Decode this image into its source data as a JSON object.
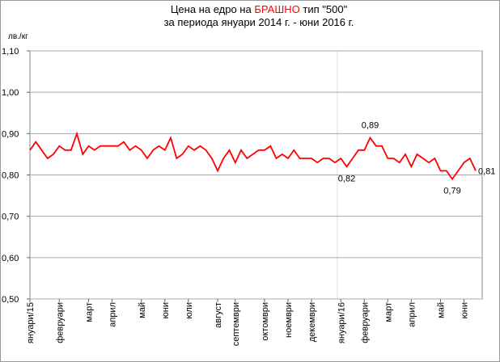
{
  "chart_data": {
    "type": "line",
    "title": [
      "Цена на едро на",
      "БРАШНО",
      "тип \"500\""
    ],
    "subtitle": "за периода януари 2014 г. - юни 2016 г.",
    "y_label": "лв./кг",
    "categories": [
      "януари/15",
      null,
      null,
      null,
      null,
      "февруари",
      null,
      null,
      null,
      null,
      "март",
      null,
      null,
      null,
      "април",
      null,
      null,
      null,
      null,
      "май",
      null,
      null,
      null,
      "юни",
      null,
      null,
      null,
      "юли",
      null,
      null,
      null,
      null,
      "август",
      null,
      null,
      "септември",
      null,
      null,
      null,
      null,
      "октомври",
      null,
      null,
      null,
      "ноември",
      null,
      null,
      null,
      "декември",
      null,
      null,
      null,
      null,
      "януари/16",
      null,
      null,
      null,
      "февруари",
      null,
      null,
      null,
      "март",
      null,
      null,
      null,
      "април",
      null,
      null,
      null,
      null,
      "май",
      null,
      null,
      null,
      "юни",
      null,
      null
    ],
    "series": [
      {
        "name": "БРАШНО",
        "color": "#ff0000",
        "values": [
          0.86,
          0.88,
          0.86,
          0.84,
          0.85,
          0.87,
          0.86,
          0.86,
          0.9,
          0.85,
          0.87,
          0.86,
          0.87,
          0.87,
          0.87,
          0.87,
          0.88,
          0.86,
          0.87,
          0.86,
          0.84,
          0.86,
          0.87,
          0.86,
          0.89,
          0.84,
          0.85,
          0.87,
          0.86,
          0.87,
          0.86,
          0.84,
          0.81,
          0.84,
          0.86,
          0.83,
          0.86,
          0.84,
          0.85,
          0.86,
          0.86,
          0.87,
          0.84,
          0.85,
          0.84,
          0.86,
          0.84,
          0.84,
          0.84,
          0.83,
          0.84,
          0.84,
          0.83,
          0.84,
          0.82,
          0.84,
          0.86,
          0.86,
          0.89,
          0.87,
          0.87,
          0.84,
          0.84,
          0.83,
          0.85,
          0.82,
          0.85,
          0.84,
          0.83,
          0.84,
          0.81,
          0.81,
          0.79,
          0.81,
          0.83,
          0.84,
          0.81
        ],
        "value_labels": [
          null,
          null,
          null,
          null,
          null,
          null,
          null,
          null,
          null,
          null,
          null,
          null,
          null,
          null,
          null,
          null,
          null,
          null,
          null,
          null,
          null,
          null,
          null,
          null,
          null,
          null,
          null,
          null,
          null,
          null,
          null,
          null,
          null,
          null,
          null,
          null,
          null,
          null,
          null,
          null,
          null,
          null,
          null,
          null,
          null,
          null,
          null,
          null,
          null,
          null,
          null,
          null,
          null,
          null,
          "0,82",
          null,
          null,
          null,
          "0,89",
          null,
          null,
          null,
          null,
          null,
          null,
          null,
          null,
          null,
          null,
          null,
          null,
          null,
          "0,79",
          null,
          null,
          null,
          "0,81"
        ]
      }
    ],
    "ylim": [
      0.5,
      1.1
    ],
    "yticks": [
      {
        "value": 0.5,
        "label": "0,50"
      },
      {
        "value": 0.6,
        "label": "0,60"
      },
      {
        "value": 0.7,
        "label": "0,70"
      },
      {
        "value": 0.8,
        "label": "0,80"
      },
      {
        "value": 0.9,
        "label": "0,90"
      },
      {
        "value": 1.0,
        "label": "1,00"
      },
      {
        "value": 1.1,
        "label": "1,10"
      }
    ],
    "grid": true
  }
}
